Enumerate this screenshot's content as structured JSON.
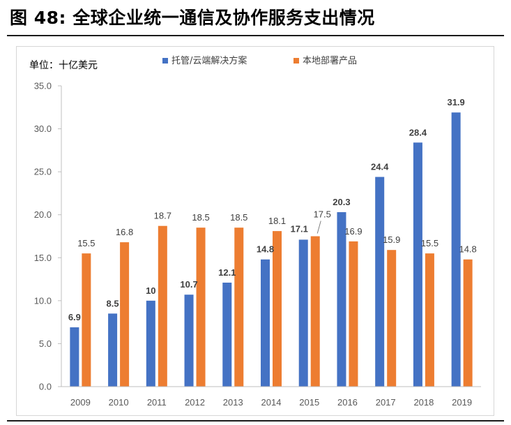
{
  "figure_title": "图  48:  全球企业统一通信及协作服务支出情况",
  "unit_label": "单位：十亿美元",
  "colors": {
    "series1": "#4472C4",
    "series2": "#ED7D31",
    "axis": "#bfbfbf"
  },
  "chart_data": {
    "type": "bar",
    "categories": [
      "2009",
      "2010",
      "2011",
      "2012",
      "2013",
      "2014",
      "2015",
      "2016",
      "2017",
      "2018",
      "2019"
    ],
    "series": [
      {
        "name": "托管/云端解决方案",
        "values": [
          6.9,
          8.5,
          10,
          10.7,
          12.1,
          14.8,
          17.1,
          20.3,
          24.4,
          28.4,
          31.9
        ],
        "labels": [
          "6.9",
          "8.5",
          "10",
          "10.7",
          "12.1",
          "14.8",
          "17.1",
          "20.3",
          "24.4",
          "28.4",
          "31.9"
        ]
      },
      {
        "name": "本地部署产品",
        "values": [
          15.5,
          16.8,
          18.7,
          18.5,
          18.5,
          18.1,
          17.5,
          16.9,
          15.9,
          15.5,
          14.8
        ],
        "labels": [
          "15.5",
          "16.8",
          "18.7",
          "18.5",
          "18.5",
          "18.1",
          "17.5",
          "16.9",
          "15.9",
          "15.5",
          "14.8"
        ]
      }
    ],
    "ylim": [
      0,
      35
    ],
    "yticks": [
      "0.0",
      "5.0",
      "10.0",
      "15.0",
      "20.0",
      "25.0",
      "30.0",
      "35.0"
    ],
    "legend_position": "top",
    "grid": false
  }
}
